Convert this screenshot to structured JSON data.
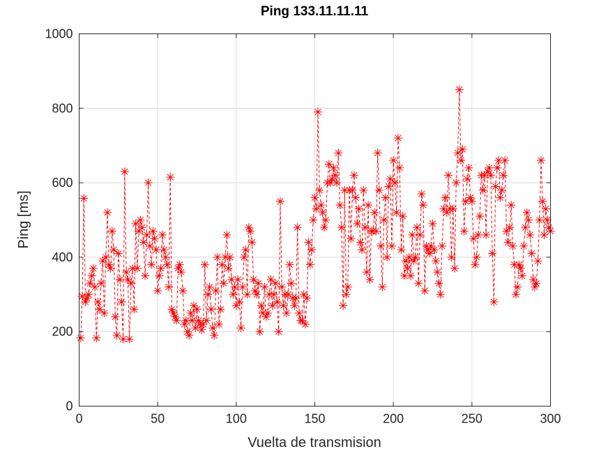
{
  "chart_data": {
    "type": "line",
    "title": "Ping 133.11.11.11",
    "xlabel": "Vuelta de transmision",
    "ylabel": "Ping [ms]",
    "xlim": [
      0,
      300
    ],
    "ylim": [
      0,
      1000
    ],
    "xticks": [
      0,
      50,
      100,
      150,
      200,
      250,
      300
    ],
    "yticks": [
      0,
      200,
      400,
      600,
      800,
      1000
    ],
    "grid": true,
    "series": [
      {
        "color": "#ff0000",
        "line_style": "dashed",
        "marker": "asterisk",
        "x": [
          1,
          2,
          3,
          4,
          5,
          6,
          7,
          8,
          9,
          10,
          11,
          12,
          13,
          14,
          15,
          16,
          17,
          18,
          19,
          20,
          21,
          22,
          23,
          24,
          25,
          26,
          27,
          28,
          29,
          30,
          31,
          32,
          33,
          34,
          35,
          36,
          37,
          38,
          39,
          40,
          41,
          42,
          43,
          44,
          45,
          46,
          47,
          48,
          49,
          50,
          51,
          52,
          53,
          54,
          55,
          56,
          57,
          58,
          59,
          60,
          61,
          62,
          63,
          64,
          65,
          66,
          67,
          68,
          69,
          70,
          71,
          72,
          73,
          74,
          75,
          76,
          77,
          78,
          79,
          80,
          81,
          82,
          83,
          84,
          85,
          86,
          87,
          88,
          89,
          90,
          91,
          92,
          93,
          94,
          95,
          96,
          97,
          98,
          99,
          100,
          101,
          102,
          103,
          104,
          105,
          106,
          107,
          108,
          109,
          110,
          111,
          112,
          113,
          114,
          115,
          116,
          117,
          118,
          119,
          120,
          121,
          122,
          123,
          124,
          125,
          126,
          127,
          128,
          129,
          130,
          131,
          132,
          133,
          134,
          135,
          136,
          137,
          138,
          139,
          140,
          141,
          142,
          143,
          144,
          145,
          146,
          147,
          148,
          149,
          150,
          151,
          152,
          153,
          154,
          155,
          156,
          157,
          158,
          159,
          160,
          161,
          162,
          163,
          164,
          165,
          166,
          167,
          168,
          169,
          170,
          171,
          172,
          173,
          174,
          175,
          176,
          177,
          178,
          179,
          180,
          181,
          182,
          183,
          184,
          185,
          186,
          187,
          188,
          189,
          190,
          191,
          192,
          193,
          194,
          195,
          196,
          197,
          198,
          199,
          200,
          201,
          202,
          203,
          204,
          205,
          206,
          207,
          208,
          209,
          210,
          211,
          212,
          213,
          214,
          215,
          216,
          217,
          218,
          219,
          220,
          221,
          222,
          223,
          224,
          225,
          226,
          227,
          228,
          229,
          230,
          231,
          232,
          233,
          234,
          235,
          236,
          237,
          238,
          239,
          240,
          241,
          242,
          243,
          244,
          245,
          246,
          247,
          248,
          249,
          250,
          251,
          252,
          253,
          254,
          255,
          256,
          257,
          258,
          259,
          260,
          261,
          262,
          263,
          264,
          265,
          266,
          267,
          268,
          269,
          270,
          271,
          272,
          273,
          274,
          275,
          276,
          277,
          278,
          279,
          280,
          281,
          282,
          283,
          284,
          285,
          286,
          287,
          288,
          289,
          290,
          291,
          292,
          293,
          294,
          295,
          296,
          297,
          298,
          299,
          300
        ],
        "y": [
          183,
          295,
          558,
          280,
          290,
          300,
          330,
          350,
          370,
          320,
          183,
          280,
          260,
          330,
          390,
          250,
          400,
          520,
          380,
          370,
          470,
          420,
          240,
          190,
          410,
          340,
          280,
          180,
          630,
          360,
          340,
          180,
          330,
          370,
          260,
          490,
          370,
          470,
          500,
          480,
          440,
          350,
          460,
          600,
          430,
          380,
          470,
          450,
          420,
          310,
          350,
          370,
          460,
          420,
          400,
          380,
          320,
          615,
          260,
          250,
          240,
          230,
          370,
          380,
          360,
          310,
          220,
          230,
          200,
          190,
          250,
          230,
          270,
          210,
          260,
          230,
          220,
          205,
          220,
          380,
          230,
          300,
          320,
          260,
          210,
          190,
          310,
          400,
          220,
          260,
          380,
          330,
          400,
          460,
          370,
          400,
          340,
          300,
          320,
          270,
          340,
          280,
          210,
          320,
          400,
          420,
          300,
          480,
          470,
          440,
          340,
          310,
          300,
          330,
          200,
          270,
          250,
          320,
          240,
          250,
          300,
          340,
          270,
          300,
          330,
          280,
          200,
          550,
          320,
          270,
          300,
          250,
          300,
          380,
          330,
          290,
          270,
          290,
          480,
          250,
          230,
          230,
          300,
          220,
          290,
          440,
          380,
          420,
          500,
          560,
          530,
          790,
          580,
          540,
          520,
          480,
          500,
          600,
          650,
          600,
          610,
          640,
          620,
          600,
          680,
          540,
          480,
          270,
          580,
          300,
          320,
          580,
          450,
          580,
          620,
          560,
          490,
          530,
          440,
          420,
          580,
          480,
          360,
          540,
          340,
          470,
          470,
          520,
          470,
          680,
          580,
          430,
          320,
          500,
          560,
          400,
          590,
          610,
          430,
          660,
          600,
          520,
          720,
          640,
          420,
          510,
          350,
          390,
          370,
          400,
          350,
          460,
          390,
          400,
          480,
          330,
          460,
          570,
          540,
          310,
          430,
          420,
          410,
          430,
          490,
          420,
          390,
          360,
          330,
          300,
          430,
          530,
          560,
          520,
          620,
          530,
          400,
          530,
          370,
          600,
          680,
          850,
          660,
          690,
          470,
          550,
          610,
          640,
          560,
          550,
          450,
          380,
          400,
          460,
          510,
          620,
          580,
          620,
          460,
          630,
          640,
          620,
          410,
          280,
          590,
          640,
          660,
          560,
          580,
          620,
          660,
          470,
          440,
          480,
          540,
          430,
          380,
          300,
          320,
          380,
          370,
          350,
          430,
          480,
          520,
          500,
          460,
          410,
          340,
          320,
          330,
          390,
          500,
          660,
          550,
          460,
          530,
          500,
          480,
          470
        ]
      }
    ]
  }
}
